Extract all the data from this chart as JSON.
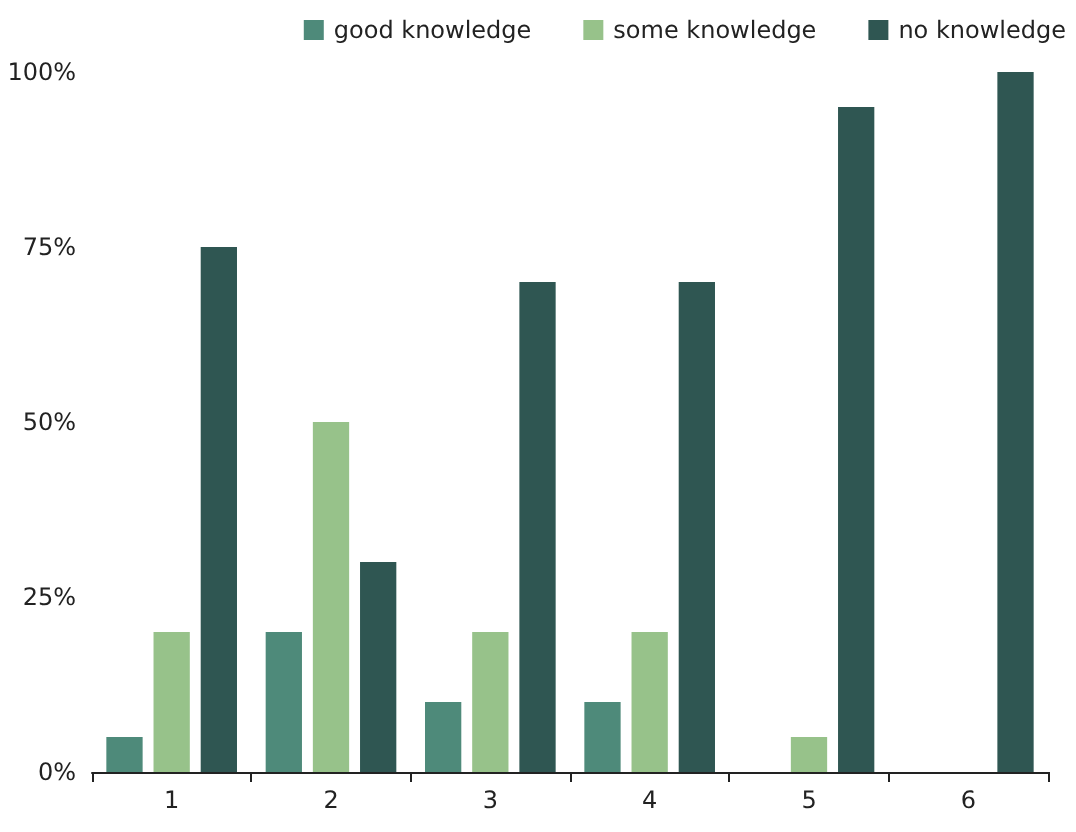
{
  "chart_data": {
    "type": "bar",
    "categories": [
      "1",
      "2",
      "3",
      "4",
      "5",
      "6"
    ],
    "series": [
      {
        "name": "good knowledge",
        "color": "#4e8a7a",
        "values": [
          5,
          20,
          10,
          10,
          0,
          0
        ]
      },
      {
        "name": "some knowledge",
        "color": "#97c28a",
        "values": [
          20,
          50,
          20,
          20,
          5,
          0
        ]
      },
      {
        "name": "no knowledge",
        "color": "#2f5652",
        "values": [
          75,
          30,
          70,
          70,
          95,
          100
        ]
      }
    ],
    "ylim": [
      0,
      100
    ],
    "yticks": [
      {
        "value": 0,
        "label": "0%"
      },
      {
        "value": 25,
        "label": "25%"
      },
      {
        "value": 50,
        "label": "50%"
      },
      {
        "value": 75,
        "label": "75%"
      },
      {
        "value": 100,
        "label": "100%"
      }
    ],
    "grid": false,
    "legend": "top right"
  }
}
